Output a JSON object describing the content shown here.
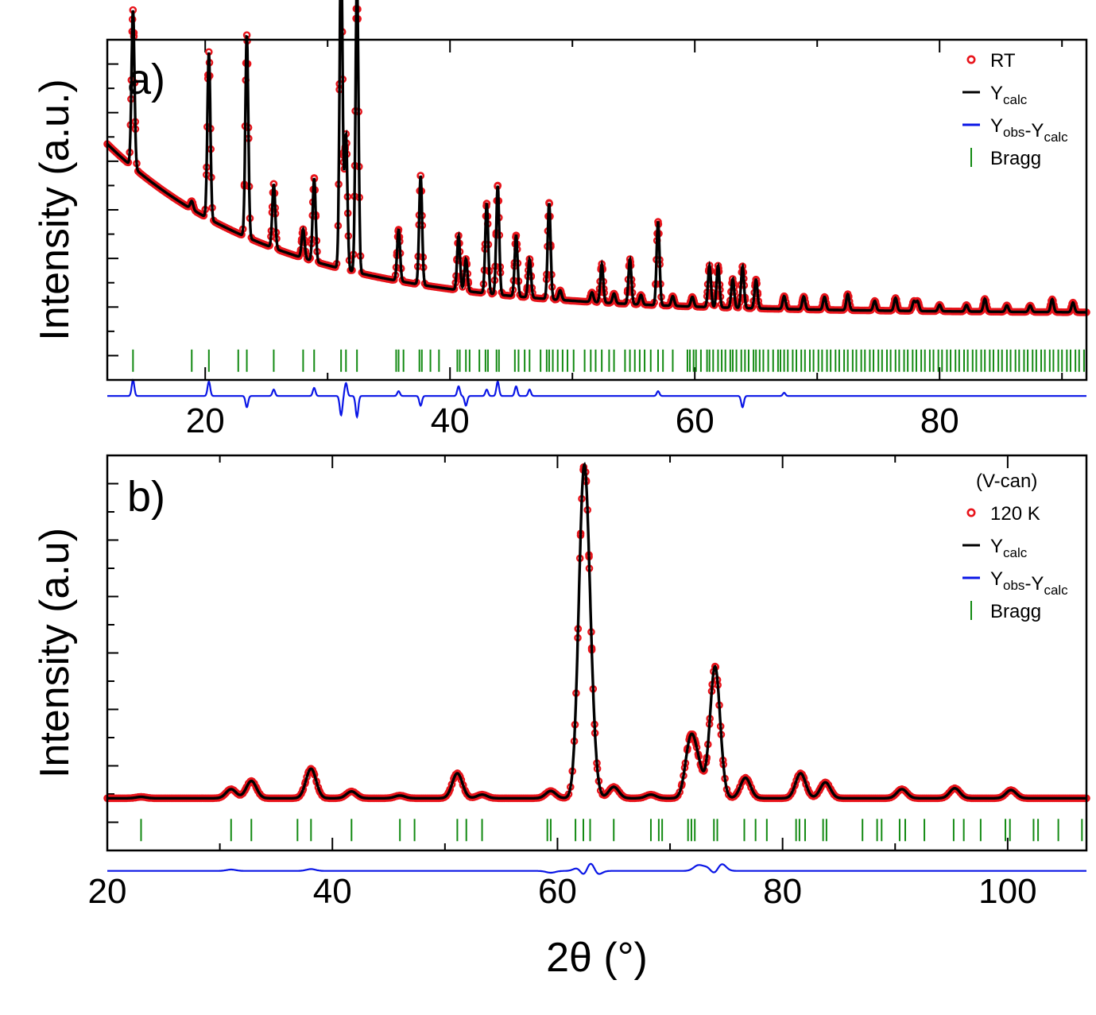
{
  "figure": {
    "xlabel": "2θ (°)"
  },
  "colors": {
    "observed": "#e8141b",
    "calc": "#000000",
    "diff": "#0a16e6",
    "bragg": "#138a13"
  },
  "chart_data": [
    {
      "type": "line",
      "panel_label": "a)",
      "ylabel": "Intensity (a.u.)",
      "xlim": [
        12,
        92
      ],
      "xticks": [
        20,
        40,
        60,
        80
      ],
      "ylim": [
        -0.3,
        10.3
      ],
      "baseline": {
        "a": 1.85,
        "b": 5.2,
        "c": 0.06,
        "tau": 14
      },
      "peaks": [
        {
          "x": 14.1,
          "h": 4.9
        },
        {
          "x": 18.9,
          "h": 0.25
        },
        {
          "x": 20.3,
          "h": 5.2
        },
        {
          "x": 23.4,
          "h": 6.3
        },
        {
          "x": 25.6,
          "h": 2.0
        },
        {
          "x": 28.0,
          "h": 0.9
        },
        {
          "x": 28.9,
          "h": 2.6
        },
        {
          "x": 31.1,
          "h": 10.2
        },
        {
          "x": 31.5,
          "h": 4.2
        },
        {
          "x": 32.4,
          "h": 9.2
        },
        {
          "x": 35.8,
          "h": 1.6
        },
        {
          "x": 37.6,
          "h": 3.4
        },
        {
          "x": 40.7,
          "h": 1.7
        },
        {
          "x": 41.3,
          "h": 1.0
        },
        {
          "x": 43.0,
          "h": 2.8
        },
        {
          "x": 43.9,
          "h": 3.4
        },
        {
          "x": 45.4,
          "h": 1.9
        },
        {
          "x": 46.5,
          "h": 1.2
        },
        {
          "x": 48.1,
          "h": 3.0
        },
        {
          "x": 49.0,
          "h": 0.3
        },
        {
          "x": 51.6,
          "h": 0.3
        },
        {
          "x": 52.4,
          "h": 1.2
        },
        {
          "x": 53.4,
          "h": 0.3
        },
        {
          "x": 54.7,
          "h": 1.4
        },
        {
          "x": 55.6,
          "h": 0.3
        },
        {
          "x": 57.0,
          "h": 2.6
        },
        {
          "x": 58.2,
          "h": 0.3
        },
        {
          "x": 59.8,
          "h": 0.3
        },
        {
          "x": 61.2,
          "h": 1.3
        },
        {
          "x": 61.9,
          "h": 1.3
        },
        {
          "x": 63.1,
          "h": 0.9
        },
        {
          "x": 63.9,
          "h": 1.3
        },
        {
          "x": 65.0,
          "h": 0.9
        },
        {
          "x": 67.3,
          "h": 0.4
        },
        {
          "x": 68.9,
          "h": 0.4
        },
        {
          "x": 70.6,
          "h": 0.4
        },
        {
          "x": 72.5,
          "h": 0.5
        },
        {
          "x": 74.7,
          "h": 0.3
        },
        {
          "x": 76.4,
          "h": 0.4
        },
        {
          "x": 77.9,
          "h": 0.3
        },
        {
          "x": 78.2,
          "h": 0.3
        },
        {
          "x": 80.0,
          "h": 0.2
        },
        {
          "x": 82.2,
          "h": 0.2
        },
        {
          "x": 83.7,
          "h": 0.4
        },
        {
          "x": 85.5,
          "h": 0.2
        },
        {
          "x": 87.4,
          "h": 0.2
        },
        {
          "x": 89.2,
          "h": 0.4
        },
        {
          "x": 90.9,
          "h": 0.3
        }
      ],
      "peak_width": 0.12,
      "bragg_level": 0.3,
      "diff_level": -0.8,
      "diff_features": [
        {
          "x": 14.1,
          "a": 0.5
        },
        {
          "x": 20.3,
          "a": 0.45
        },
        {
          "x": 23.4,
          "a": -0.35
        },
        {
          "x": 25.6,
          "a": 0.2
        },
        {
          "x": 28.9,
          "a": 0.25
        },
        {
          "x": 31.1,
          "a": -0.6
        },
        {
          "x": 31.5,
          "a": 0.4
        },
        {
          "x": 32.4,
          "a": -0.65
        },
        {
          "x": 35.8,
          "a": 0.15
        },
        {
          "x": 37.6,
          "a": -0.3
        },
        {
          "x": 40.7,
          "a": 0.3
        },
        {
          "x": 41.3,
          "a": -0.3
        },
        {
          "x": 43.0,
          "a": 0.2
        },
        {
          "x": 43.9,
          "a": 0.45
        },
        {
          "x": 45.4,
          "a": 0.3
        },
        {
          "x": 46.5,
          "a": 0.2
        },
        {
          "x": 57.0,
          "a": 0.15
        },
        {
          "x": 63.9,
          "a": -0.35
        },
        {
          "x": 67.3,
          "a": 0.1
        }
      ],
      "bragg_positions": [
        14.1,
        18.9,
        20.3,
        22.7,
        23.4,
        25.6,
        28.0,
        28.9,
        31.1,
        31.5,
        32.4,
        35.6,
        35.8,
        36.2,
        37.5,
        37.7,
        38.4,
        39.1,
        40.6,
        40.8,
        41.3,
        41.6,
        42.4,
        42.9,
        43.1,
        43.8,
        44.0,
        45.3,
        45.6,
        46.1,
        46.5,
        47.4,
        47.9,
        48.1,
        48.4,
        48.8,
        49.2,
        49.6,
        50.1,
        51.0,
        51.5,
        51.9,
        52.4,
        53.0,
        53.4,
        54.3,
        54.7,
        55.1,
        55.5,
        55.9,
        56.4,
        57.0,
        57.4,
        58.2,
        59.4,
        59.6,
        59.9,
        60.1,
        60.5,
        61.0,
        61.2,
        61.5,
        61.9,
        62.2,
        62.5,
        62.9,
        63.1,
        63.4,
        63.8,
        64.1,
        64.4,
        64.8,
        65.0,
        65.3,
        65.6,
        66.0,
        66.4,
        66.8,
        67.0,
        67.3,
        67.6,
        68.0,
        68.3,
        68.7,
        69.0,
        69.4,
        69.7,
        70.1,
        70.4,
        70.8,
        71.1,
        71.5,
        71.8,
        72.2,
        72.5,
        72.9,
        73.2,
        73.6,
        73.9,
        74.3,
        74.6,
        75.0,
        75.3,
        75.7,
        76.0,
        76.4,
        76.7,
        77.1,
        77.4,
        77.8,
        78.1,
        78.5,
        78.8,
        79.2,
        79.5,
        79.9,
        80.2,
        80.6,
        80.9,
        81.3,
        81.6,
        82.0,
        82.3,
        82.7,
        83.0,
        83.4,
        83.7,
        84.1,
        84.4,
        84.8,
        85.1,
        85.5,
        85.8,
        86.2,
        86.5,
        86.9,
        87.2,
        87.6,
        87.9,
        88.3,
        88.6,
        89.0,
        89.3,
        89.7,
        90.0,
        90.4,
        90.7,
        91.1,
        91.4,
        91.8
      ],
      "legend": [
        {
          "kind": "obs",
          "label": "RT"
        },
        {
          "kind": "calc",
          "label": "Y",
          "sub": "calc"
        },
        {
          "kind": "diff",
          "label": "Y",
          "sub": "obs",
          "label2": "-Y",
          "sub2": "calc"
        },
        {
          "kind": "bragg",
          "label": "Bragg"
        }
      ]
    },
    {
      "type": "line",
      "panel_label": "b)",
      "ylabel": "Intensity (a.u)",
      "xlim": [
        20,
        107
      ],
      "xticks": [
        20,
        40,
        60,
        80,
        100
      ],
      "ylim": [
        -0.5,
        8.2
      ],
      "baseline": {
        "a": 0.65,
        "b": 0.0,
        "c": 0.0,
        "tau": 10
      },
      "peaks": [
        {
          "x": 23.0,
          "h": 0.03
        },
        {
          "x": 31.0,
          "h": 0.2
        },
        {
          "x": 32.8,
          "h": 0.38
        },
        {
          "x": 38.1,
          "h": 0.65
        },
        {
          "x": 41.7,
          "h": 0.15
        },
        {
          "x": 46.0,
          "h": 0.06
        },
        {
          "x": 51.1,
          "h": 0.55
        },
        {
          "x": 53.3,
          "h": 0.08
        },
        {
          "x": 59.4,
          "h": 0.16
        },
        {
          "x": 62.3,
          "h": 6.15
        },
        {
          "x": 62.8,
          "h": 2.0
        },
        {
          "x": 65.0,
          "h": 0.25
        },
        {
          "x": 68.3,
          "h": 0.08
        },
        {
          "x": 71.8,
          "h": 1.2
        },
        {
          "x": 72.5,
          "h": 0.6
        },
        {
          "x": 74.0,
          "h": 2.9
        },
        {
          "x": 76.7,
          "h": 0.45
        },
        {
          "x": 81.6,
          "h": 0.55
        },
        {
          "x": 83.8,
          "h": 0.35
        },
        {
          "x": 90.6,
          "h": 0.2
        },
        {
          "x": 95.3,
          "h": 0.22
        },
        {
          "x": 100.3,
          "h": 0.18
        }
      ],
      "peak_width": 0.45,
      "bragg_level": -0.05,
      "diff_level": -0.95,
      "diff_features": [
        {
          "x": 31.0,
          "a": 0.03
        },
        {
          "x": 38.1,
          "a": 0.04
        },
        {
          "x": 59.4,
          "a": -0.04
        },
        {
          "x": 62.0,
          "a": 0.15
        },
        {
          "x": 62.4,
          "a": -0.3
        },
        {
          "x": 62.9,
          "a": 0.35
        },
        {
          "x": 63.4,
          "a": -0.15
        },
        {
          "x": 72.5,
          "a": 0.12
        },
        {
          "x": 73.4,
          "a": 0.1
        },
        {
          "x": 74.0,
          "a": -0.15
        },
        {
          "x": 74.5,
          "a": 0.2
        }
      ],
      "bragg_positions": [
        23.0,
        31.0,
        32.8,
        36.9,
        38.1,
        41.7,
        46.0,
        47.3,
        51.1,
        51.9,
        53.3,
        59.1,
        59.4,
        61.6,
        62.3,
        62.9,
        65.0,
        68.3,
        69.0,
        69.3,
        71.6,
        71.9,
        72.2,
        73.9,
        74.2,
        76.6,
        77.6,
        78.6,
        81.2,
        81.5,
        82.0,
        83.6,
        83.9,
        87.1,
        88.4,
        88.8,
        90.4,
        90.9,
        92.6,
        95.2,
        96.1,
        97.6,
        99.8,
        100.2,
        102.3,
        102.7,
        104.5,
        106.6
      ],
      "legend": [
        {
          "kind": "header",
          "label": "(V-can)"
        },
        {
          "kind": "obs",
          "label": "120 K"
        },
        {
          "kind": "calc",
          "label": "Y",
          "sub": "calc"
        },
        {
          "kind": "diff",
          "label": "Y",
          "sub": "obs",
          "label2": "-Y",
          "sub2": "calc"
        },
        {
          "kind": "bragg",
          "label": "Bragg"
        }
      ]
    }
  ]
}
